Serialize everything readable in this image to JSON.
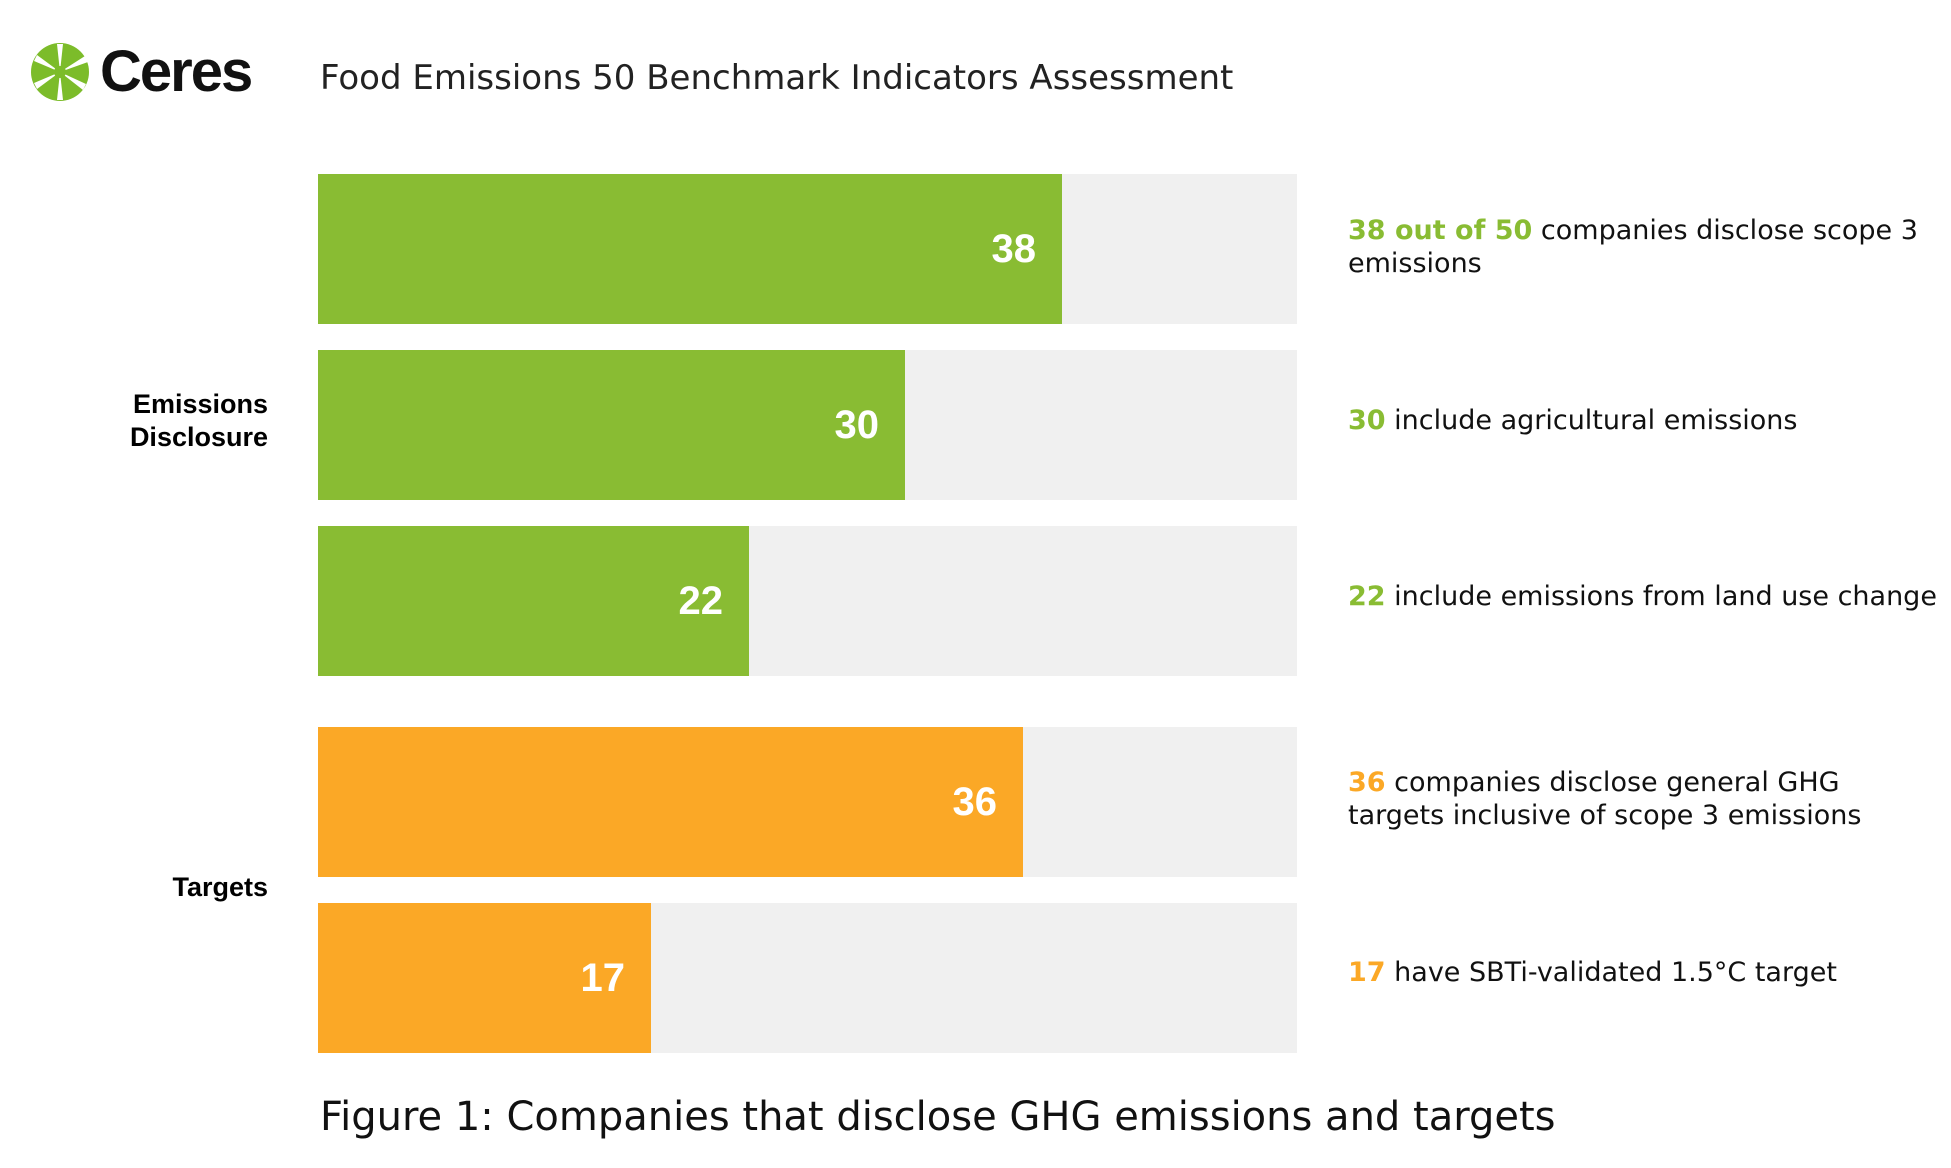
{
  "logo": {
    "text": "Ceres",
    "icon": "ceres-starburst-icon",
    "color": "#7cbc2a"
  },
  "subtitle": "Food Emissions 50 Benchmark Indicators Assessment",
  "caption": "Figure 1: Companies that disclose GHG emissions and targets",
  "colors": {
    "disclosure": "#89bc33",
    "targets": "#fba826",
    "track": "#f0f0f0"
  },
  "groups": [
    {
      "label_line1": "Emissions",
      "label_line2": "Disclosure"
    },
    {
      "label_line1": "Targets",
      "label_line2": ""
    }
  ],
  "annotations": [
    {
      "highlight": "38 out of 50",
      "text": " companies disclose scope 3 emissions"
    },
    {
      "highlight": "30",
      "text": " include agricultural emissions"
    },
    {
      "highlight": "22",
      "text": " include emissions from land use change"
    },
    {
      "highlight": "36",
      "text": " companies disclose general GHG targets inclusive of scope 3 emissions"
    },
    {
      "highlight": "17",
      "text": " have SBTi-validated 1.5°C target"
    }
  ],
  "chart_data": {
    "type": "bar",
    "orientation": "horizontal",
    "xlim": [
      0,
      50
    ],
    "grid": false,
    "categories": [
      "companies disclose scope 3 emissions",
      "include agricultural emissions",
      "include emissions from land use change",
      "companies disclose general GHG targets inclusive of scope 3 emissions",
      "have SBTi-validated 1.5°C target"
    ],
    "groups": [
      "Emissions Disclosure",
      "Emissions Disclosure",
      "Emissions Disclosure",
      "Targets",
      "Targets"
    ],
    "values": [
      38,
      30,
      22,
      36,
      17
    ],
    "value_labels": [
      "38",
      "30",
      "22",
      "36",
      "17"
    ]
  }
}
